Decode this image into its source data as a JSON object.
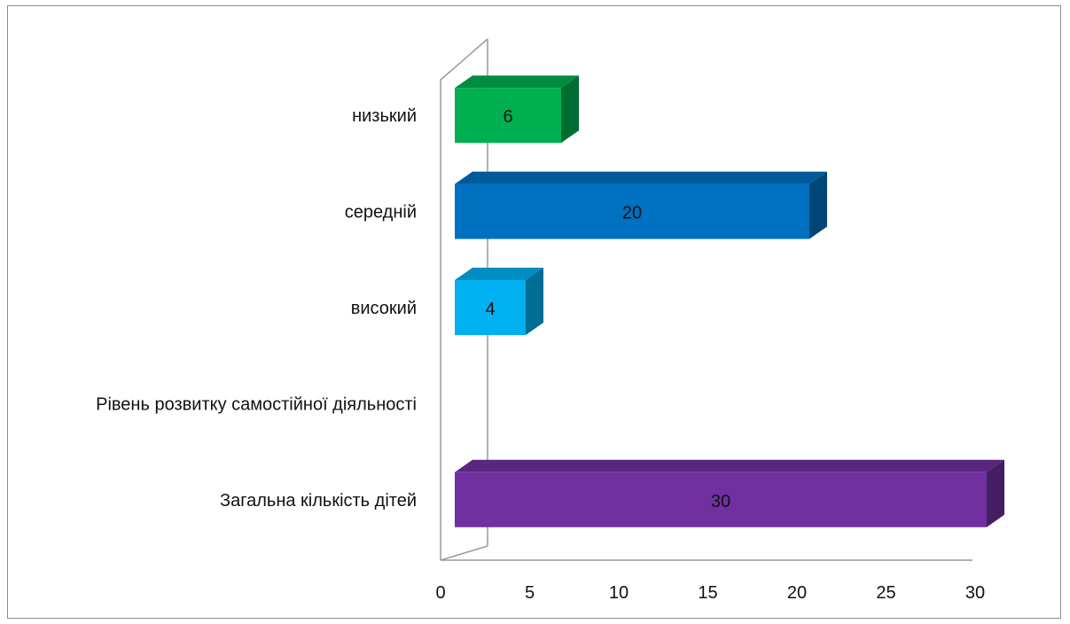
{
  "chart_data": {
    "type": "bar",
    "orientation": "horizontal",
    "style": "3d",
    "categories": [
      "Загальна кількість дітей",
      "Рівень розвитку самостійної діяльності",
      "високий",
      "середній",
      "низький"
    ],
    "values": [
      30,
      null,
      4,
      20,
      6
    ],
    "data_labels": [
      "30",
      "",
      "4",
      "20",
      "6"
    ],
    "bar_colors": [
      "#7030a0",
      null,
      "#00b0f0",
      "#0070c0",
      "#00b050"
    ],
    "xlim": [
      0,
      30
    ],
    "x_ticks": [
      0,
      5,
      10,
      15,
      20,
      25,
      30
    ],
    "grid": false,
    "legend": "none",
    "title": "",
    "xlabel": "",
    "ylabel": ""
  }
}
